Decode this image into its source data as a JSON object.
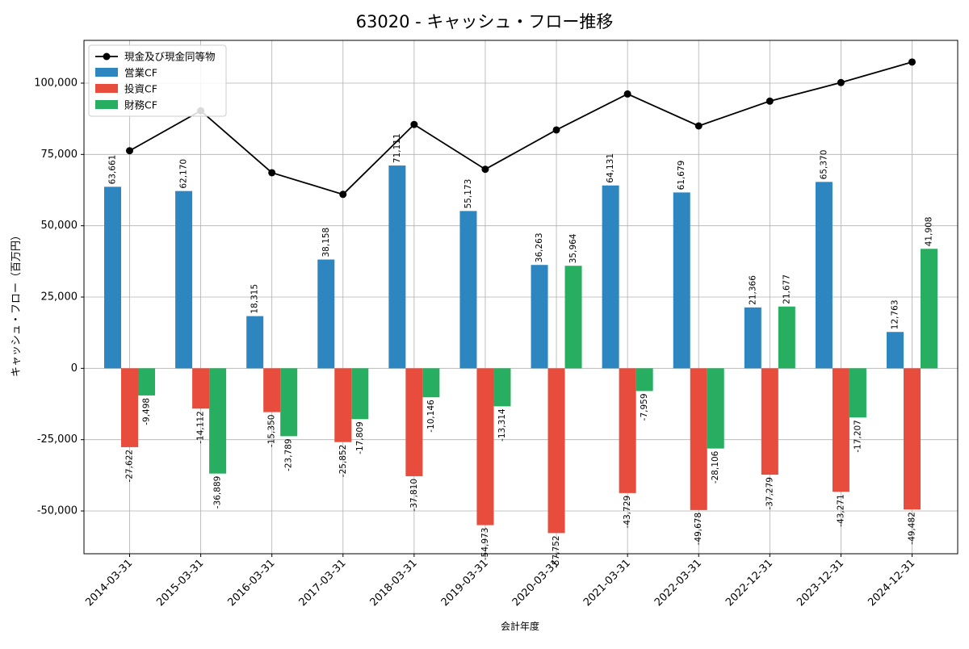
{
  "chart_data": {
    "type": "bar",
    "title": "63020 - キャッシュ・フロー推移",
    "xlabel": "会計年度",
    "ylabel": "キャッシュ・フロー（百万円）",
    "ylim": [
      -65000,
      115000
    ],
    "yticks": [
      -50000,
      -25000,
      0,
      25000,
      50000,
      75000,
      100000
    ],
    "ytick_labels": [
      "-50,000",
      "-25,000",
      "0",
      "25,000",
      "50,000",
      "75,000",
      "100,000"
    ],
    "grid": true,
    "legend_position": "top-left",
    "categories": [
      "2014-03-31",
      "2015-03-31",
      "2016-03-31",
      "2017-03-31",
      "2018-03-31",
      "2019-03-31",
      "2020-03-31",
      "2021-03-31",
      "2022-03-31",
      "2022-12-31",
      "2023-12-31",
      "2024-12-31"
    ],
    "series": [
      {
        "name": "営業CF",
        "kind": "bar",
        "color": "#2e86c1",
        "values": [
          63661,
          62170,
          18315,
          38158,
          71111,
          55173,
          36263,
          64131,
          61679,
          21366,
          65370,
          12763
        ],
        "labels": [
          "63,661",
          "62,170",
          "18,315",
          "38,158",
          "71,111",
          "55,173",
          "36,263",
          "64,131",
          "61,679",
          "21,366",
          "65,370",
          "12,763"
        ]
      },
      {
        "name": "投資CF",
        "kind": "bar",
        "color": "#e74c3c",
        "values": [
          -27622,
          -14112,
          -15350,
          -25852,
          -37810,
          -54973,
          -57752,
          -43729,
          -49678,
          -37279,
          -43271,
          -49482
        ],
        "labels": [
          "-27,622",
          "-14,112",
          "-15,350",
          "-25,852",
          "-37,810",
          "-54,973",
          "-57,752",
          "-43,729",
          "-49,678",
          "-37,279",
          "-43,271",
          "-49,482"
        ]
      },
      {
        "name": "財務CF",
        "kind": "bar",
        "color": "#27ae60",
        "values": [
          -9498,
          -36889,
          -23789,
          -17809,
          -10146,
          -13314,
          35964,
          -7959,
          -28106,
          21677,
          -17207,
          41908
        ],
        "labels": [
          "-9,498",
          "-36,889",
          "-23,789",
          "-17,809",
          "-10,146",
          "-13,314",
          "35,964",
          "-7,959",
          "-28,106",
          "21,677",
          "-17,207",
          "41,908"
        ]
      },
      {
        "name": "現金及び現金同等物",
        "kind": "line",
        "color": "#000000",
        "values": [
          76300,
          90300,
          68600,
          61000,
          85500,
          69800,
          83600,
          96200,
          85000,
          93700,
          100200,
          107400
        ]
      }
    ]
  }
}
